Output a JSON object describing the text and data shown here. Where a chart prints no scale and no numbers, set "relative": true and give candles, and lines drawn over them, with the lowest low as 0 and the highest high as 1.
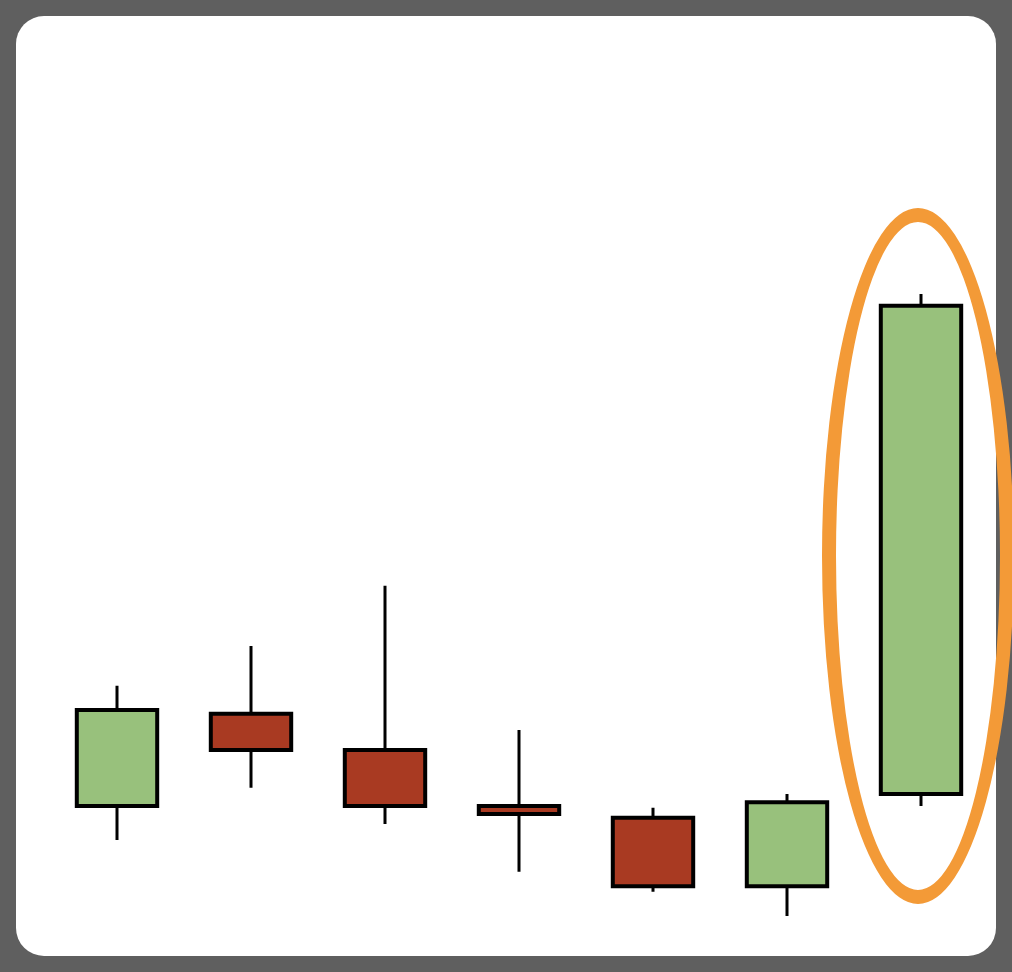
{
  "chart_data": {
    "type": "candlestick",
    "relative": true,
    "categories": [
      null,
      null,
      null,
      null,
      null,
      null,
      null
    ],
    "ohlc": [
      [
        0.177,
        0.37,
        0.122,
        0.331
      ],
      [
        0.325,
        0.434,
        0.206,
        0.267
      ],
      [
        0.267,
        0.531,
        0.148,
        0.177
      ],
      [
        0.177,
        0.299,
        0.071,
        0.164
      ],
      [
        0.158,
        0.174,
        0.039,
        0.048
      ],
      [
        0.048,
        0.196,
        0,
        0.183
      ],
      [
        0.196,
        1,
        0.177,
        0.981
      ]
    ],
    "colors": [
      "#98c17c",
      "#a93a22",
      "#a93a22",
      "#a93a22",
      "#a93a22",
      "#98c17c",
      "#98c17c"
    ]
  }
}
